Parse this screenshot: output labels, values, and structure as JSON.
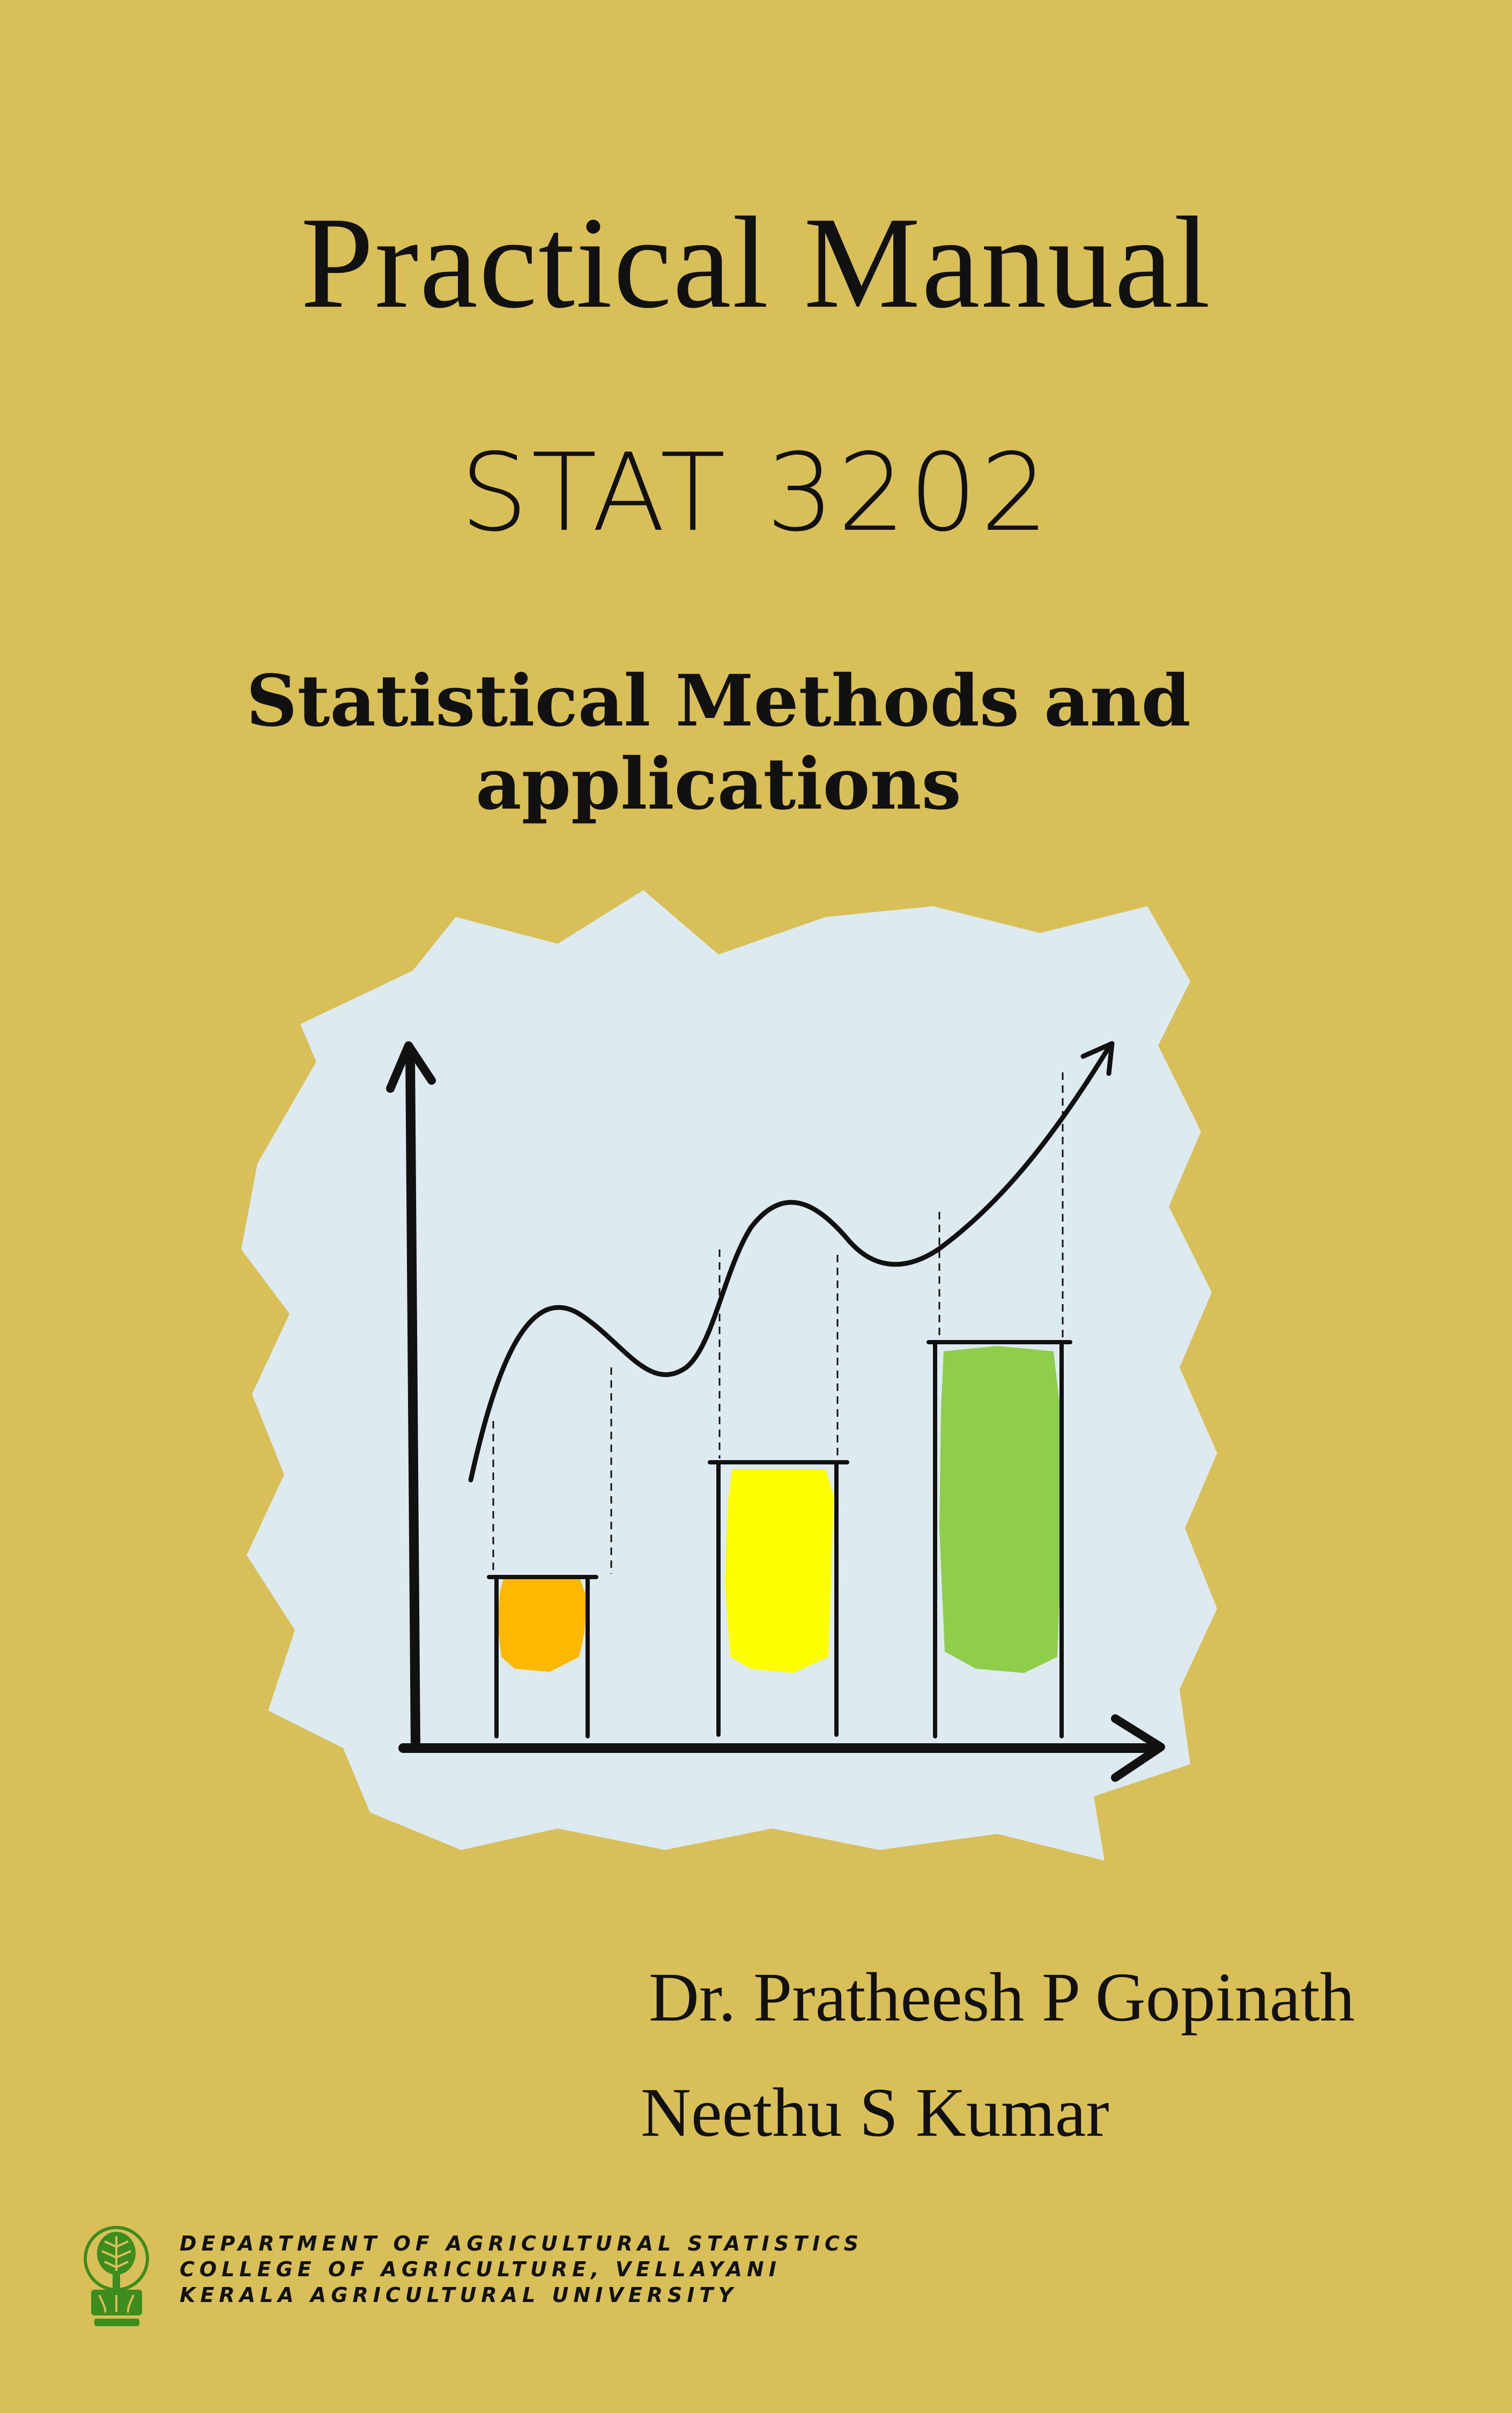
{
  "cover": {
    "title": "Practical Manual",
    "course_code": "STAT 3202",
    "subtitle_line1": "Statistical  Methods and",
    "subtitle_line2": "applications"
  },
  "authors": [
    "Dr. Pratheesh P Gopinath",
    "Neethu S Kumar"
  ],
  "institution": {
    "line1": "DEPARTMENT OF AGRICULTURAL STATISTICS",
    "line2": "COLLEGE OF AGRICULTURE, VELLAYANI",
    "line3": "KERALA AGRICULTURAL UNIVERSITY"
  },
  "illustration": {
    "icon": "hand-drawn-bar-chart-with-trend-arrow",
    "background_color": "#DDEBF0",
    "bar_fill_levels": [
      0.42,
      0.72,
      1.0
    ],
    "bar_colors": [
      "#FDB900",
      "#FFFF00",
      "#8ECE4A"
    ]
  },
  "colors": {
    "background": "#D8BF58",
    "ink": "#111111",
    "logo_green": "#3C8C1E"
  }
}
